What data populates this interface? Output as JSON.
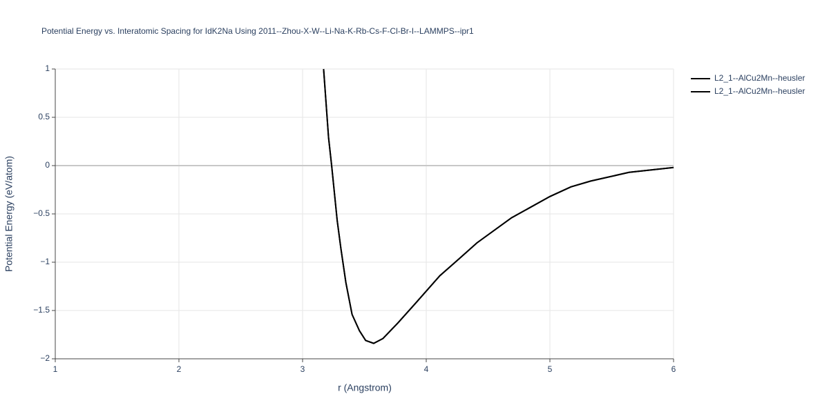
{
  "chart_data": {
    "type": "line",
    "title": "Potential Energy vs. Interatomic Spacing for IdK2Na Using 2011--Zhou-X-W--Li-Na-K-Rb-Cs-F-Cl-Br-I--LAMMPS--ipr1",
    "x_label": "r (Angstrom)",
    "y_label": "Potential Energy (eV/atom)",
    "x": [
      3.17,
      3.21,
      3.235,
      3.28,
      3.31,
      3.35,
      3.4,
      3.46,
      3.51,
      3.575,
      3.65,
      3.77,
      3.91,
      4.11,
      4.27,
      4.41,
      4.69,
      5.0,
      5.17,
      5.33,
      5.64,
      6.0
    ],
    "series": [
      {
        "name": "L2_1--AlCu2Mn--heusler",
        "color": "#000000",
        "values": [
          1,
          0.29,
          0,
          -0.57,
          -0.86,
          -1.21,
          -1.54,
          -1.71,
          -1.81,
          -1.84,
          -1.79,
          -1.63,
          -1.43,
          -1.14,
          -0.96,
          -0.8,
          -0.54,
          -0.32,
          -0.22,
          -0.16,
          -0.07,
          -0.02
        ]
      },
      {
        "name": "L2_1--AlCu2Mn--heusler",
        "color": "#000000",
        "values": [
          1,
          0.29,
          0,
          -0.57,
          -0.86,
          -1.21,
          -1.54,
          -1.71,
          -1.81,
          -1.84,
          -1.79,
          -1.63,
          -1.43,
          -1.14,
          -0.96,
          -0.8,
          -0.54,
          -0.32,
          -0.22,
          -0.16,
          -0.07,
          -0.02
        ]
      }
    ],
    "xlim": [
      1,
      6
    ],
    "ylim": [
      -2,
      1
    ],
    "xticks": [
      1,
      2,
      3,
      4,
      5,
      6
    ],
    "yticks": [
      {
        "value": -2,
        "label": "−2"
      },
      {
        "value": -1.5,
        "label": "−1.5"
      },
      {
        "value": -1,
        "label": "−1"
      },
      {
        "value": -0.5,
        "label": "−0.5"
      },
      0,
      0.5,
      1
    ],
    "grid": true,
    "legend": "top-right"
  }
}
